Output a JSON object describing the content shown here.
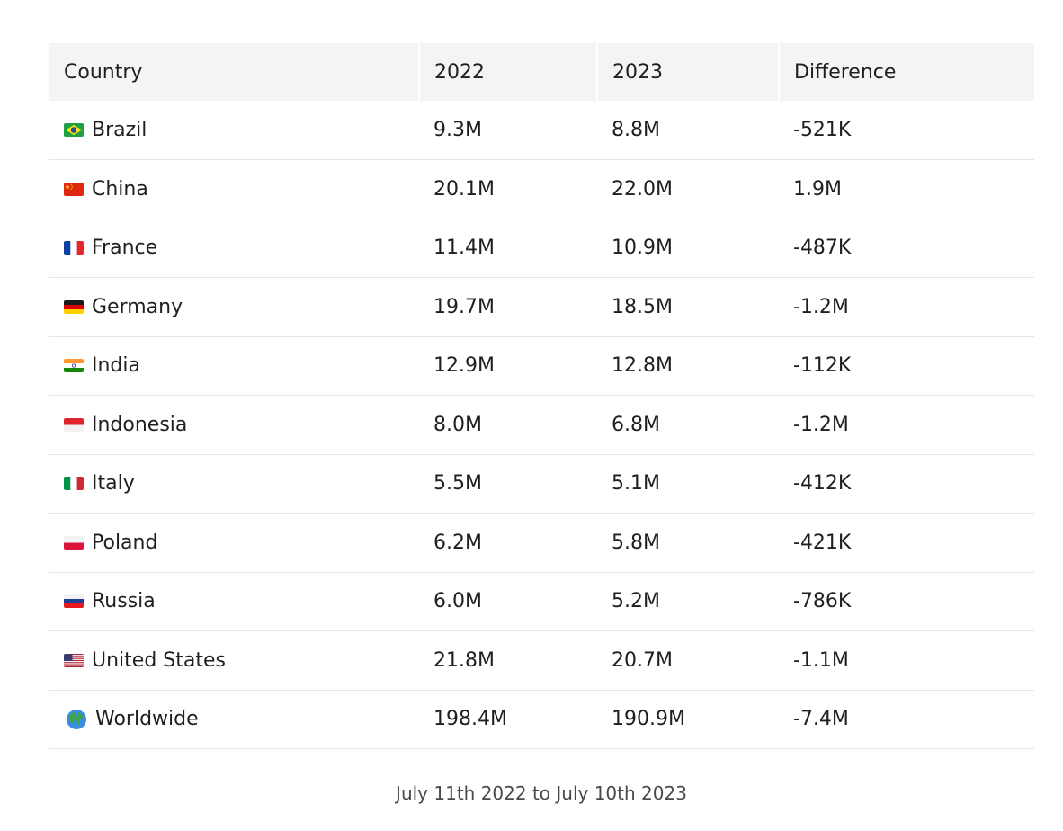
{
  "table": {
    "headers": [
      "Country",
      "2022",
      "2023",
      "Difference"
    ],
    "rows": [
      {
        "country": "Brazil",
        "flag": "brazil-flag-icon",
        "y2022": "9.3M",
        "y2023": "8.8M",
        "difference": "-521K"
      },
      {
        "country": "China",
        "flag": "china-flag-icon",
        "y2022": "20.1M",
        "y2023": "22.0M",
        "difference": "1.9M"
      },
      {
        "country": "France",
        "flag": "france-flag-icon",
        "y2022": "11.4M",
        "y2023": "10.9M",
        "difference": "-487K"
      },
      {
        "country": "Germany",
        "flag": "germany-flag-icon",
        "y2022": "19.7M",
        "y2023": "18.5M",
        "difference": "-1.2M"
      },
      {
        "country": "India",
        "flag": "india-flag-icon",
        "y2022": "12.9M",
        "y2023": "12.8M",
        "difference": "-112K"
      },
      {
        "country": "Indonesia",
        "flag": "indonesia-flag-icon",
        "y2022": "8.0M",
        "y2023": "6.8M",
        "difference": "-1.2M"
      },
      {
        "country": "Italy",
        "flag": "italy-flag-icon",
        "y2022": "5.5M",
        "y2023": "5.1M",
        "difference": "-412K"
      },
      {
        "country": "Poland",
        "flag": "poland-flag-icon",
        "y2022": "6.2M",
        "y2023": "5.8M",
        "difference": "-421K"
      },
      {
        "country": "Russia",
        "flag": "russia-flag-icon",
        "y2022": "6.0M",
        "y2023": "5.2M",
        "difference": "-786K"
      },
      {
        "country": "United States",
        "flag": "usa-flag-icon",
        "y2022": "21.8M",
        "y2023": "20.7M",
        "difference": "-1.1M"
      },
      {
        "country": "Worldwide",
        "flag": "globe-icon",
        "y2022": "198.4M",
        "y2023": "190.9M",
        "difference": "-7.4M"
      }
    ]
  },
  "caption": "July 11th 2022 to July 10th 2023",
  "colors": {
    "header_background": "#f4f4f4",
    "row_divider": "#e6e6e6",
    "text": "#1f1f1f",
    "caption": "#4a4a4a"
  }
}
